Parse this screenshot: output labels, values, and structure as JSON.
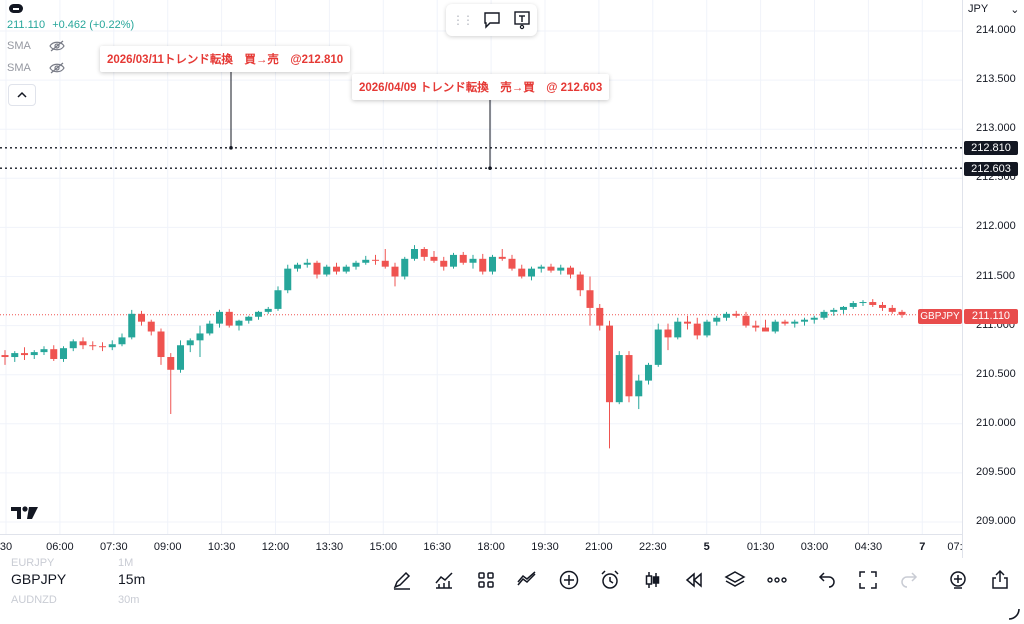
{
  "header": {
    "last_price": "211.110",
    "change": "+0.462",
    "change_pct": "(+0.22%)",
    "currency": "JPY",
    "indicators": [
      {
        "label": "SMA",
        "icon": "eye-off-icon"
      },
      {
        "label": "SMA",
        "icon": "eye-off-icon"
      }
    ]
  },
  "annotations": [
    {
      "text": "2026/03/11トレンド転換　買→売　@212.810",
      "price": 212.81
    },
    {
      "text": "2026/04/09 トレンド転換　売→買　@ 212.603",
      "price": 212.603
    }
  ],
  "price_tags": {
    "line1": "212.810",
    "line2": "212.603",
    "current": "211.110",
    "symbol": "GBPJPY"
  },
  "bottom": {
    "symbol": "GBPJPY",
    "timeframe": "15m",
    "ghost_symbols": [
      "EURJPY",
      "AUDNZD"
    ],
    "ghost_timeframes": [
      "1M",
      "30m"
    ],
    "tools": [
      "pen-icon",
      "indicators-icon",
      "grid-icon",
      "compare-icon",
      "plus-circle-icon",
      "alarm-icon",
      "candles-icon",
      "replay-icon",
      "layers-icon",
      "more-icon",
      "undo-icon",
      "fullscreen-icon",
      "redo-icon",
      "add-alert-icon",
      "share-icon"
    ]
  },
  "colors": {
    "up": "#26a69a",
    "down": "#ef5350",
    "annotation": "#e53935"
  },
  "chart_data": {
    "type": "candlestick",
    "symbol": "GBPJPY",
    "interval": "15m",
    "ylim": [
      209.0,
      214.0
    ],
    "y_ticks": [
      "214.000",
      "213.500",
      "213.000",
      "212.500",
      "212.000",
      "211.500",
      "211.000",
      "210.500",
      "210.000",
      "209.500",
      "209.000"
    ],
    "x_ticks": [
      "30",
      "06:00",
      "07:30",
      "09:00",
      "10:30",
      "12:00",
      "13:30",
      "15:00",
      "16:30",
      "18:00",
      "19:30",
      "21:00",
      "22:30",
      "5",
      "01:30",
      "03:00",
      "04:30",
      "7",
      "07:"
    ],
    "horizontal_lines": [
      212.81,
      212.603
    ],
    "current_price": 211.11,
    "ohlc": [
      [
        210.7,
        210.75,
        210.6,
        210.68
      ],
      [
        210.68,
        210.74,
        210.63,
        210.72
      ],
      [
        210.72,
        210.78,
        210.65,
        210.7
      ],
      [
        210.7,
        210.75,
        210.66,
        210.73
      ],
      [
        210.73,
        210.79,
        210.7,
        210.76
      ],
      [
        210.76,
        210.8,
        210.64,
        210.66
      ],
      [
        210.66,
        210.79,
        210.63,
        210.77
      ],
      [
        210.77,
        210.86,
        210.74,
        210.84
      ],
      [
        210.84,
        210.88,
        210.76,
        210.8
      ],
      [
        210.8,
        210.84,
        210.75,
        210.79
      ],
      [
        210.79,
        210.83,
        210.74,
        210.78
      ],
      [
        210.78,
        210.85,
        210.75,
        210.81
      ],
      [
        210.81,
        210.92,
        210.79,
        210.88
      ],
      [
        210.88,
        211.16,
        210.86,
        211.12
      ],
      [
        211.12,
        211.15,
        211.0,
        211.04
      ],
      [
        211.04,
        211.06,
        210.9,
        210.94
      ],
      [
        210.94,
        210.97,
        210.6,
        210.68
      ],
      [
        210.68,
        210.72,
        210.1,
        210.55
      ],
      [
        210.55,
        210.85,
        210.52,
        210.8
      ],
      [
        210.8,
        210.87,
        210.73,
        210.85
      ],
      [
        210.85,
        211.0,
        210.68,
        210.92
      ],
      [
        210.92,
        211.05,
        210.9,
        211.02
      ],
      [
        211.02,
        211.16,
        210.98,
        211.14
      ],
      [
        211.14,
        211.17,
        210.98,
        211.0
      ],
      [
        211.0,
        211.06,
        210.95,
        211.05
      ],
      [
        211.05,
        211.1,
        211.02,
        211.09
      ],
      [
        211.09,
        211.15,
        211.06,
        211.14
      ],
      [
        211.14,
        211.19,
        211.12,
        211.17
      ],
      [
        211.17,
        211.4,
        211.15,
        211.36
      ],
      [
        211.36,
        211.62,
        211.33,
        211.58
      ],
      [
        211.58,
        211.64,
        211.55,
        211.62
      ],
      [
        211.62,
        211.68,
        211.59,
        211.64
      ],
      [
        211.64,
        211.66,
        211.48,
        211.52
      ],
      [
        211.52,
        211.62,
        211.5,
        211.6
      ],
      [
        211.6,
        211.64,
        211.52,
        211.55
      ],
      [
        211.55,
        211.62,
        211.53,
        211.6
      ],
      [
        211.6,
        211.66,
        211.57,
        211.64
      ],
      [
        211.64,
        211.71,
        211.62,
        211.67
      ],
      [
        211.67,
        211.72,
        211.62,
        211.66
      ],
      [
        211.66,
        211.78,
        211.58,
        211.6
      ],
      [
        211.6,
        211.64,
        211.4,
        211.5
      ],
      [
        211.5,
        211.7,
        211.47,
        211.68
      ],
      [
        211.68,
        211.82,
        211.66,
        211.78
      ],
      [
        211.78,
        211.8,
        211.66,
        211.7
      ],
      [
        211.7,
        211.76,
        211.64,
        211.66
      ],
      [
        211.66,
        211.7,
        211.56,
        211.6
      ],
      [
        211.6,
        211.74,
        211.58,
        211.72
      ],
      [
        211.72,
        211.75,
        211.62,
        211.64
      ],
      [
        211.64,
        211.72,
        211.58,
        211.68
      ],
      [
        211.68,
        211.73,
        211.52,
        211.55
      ],
      [
        211.55,
        211.72,
        211.52,
        211.7
      ],
      [
        211.7,
        211.78,
        211.66,
        211.68
      ],
      [
        211.68,
        211.72,
        211.56,
        211.58
      ],
      [
        211.58,
        211.62,
        211.48,
        211.5
      ],
      [
        211.5,
        211.6,
        211.46,
        211.58
      ],
      [
        211.58,
        211.62,
        211.54,
        211.6
      ],
      [
        211.6,
        211.63,
        211.54,
        211.56
      ],
      [
        211.56,
        211.62,
        211.52,
        211.59
      ],
      [
        211.59,
        211.61,
        211.48,
        211.52
      ],
      [
        211.52,
        211.55,
        211.3,
        211.36
      ],
      [
        211.36,
        211.5,
        211.0,
        211.18
      ],
      [
        211.18,
        211.22,
        210.95,
        211.0
      ],
      [
        211.0,
        211.05,
        209.75,
        210.22
      ],
      [
        210.22,
        210.74,
        210.2,
        210.7
      ],
      [
        210.7,
        210.74,
        210.22,
        210.28
      ],
      [
        210.28,
        210.5,
        210.15,
        210.44
      ],
      [
        210.44,
        210.62,
        210.4,
        210.6
      ],
      [
        210.6,
        211.02,
        210.58,
        210.96
      ],
      [
        210.96,
        211.02,
        210.75,
        210.88
      ],
      [
        210.88,
        211.08,
        210.86,
        211.04
      ],
      [
        211.04,
        211.1,
        210.96,
        211.02
      ],
      [
        211.02,
        211.08,
        210.86,
        210.9
      ],
      [
        210.9,
        211.06,
        210.88,
        211.04
      ],
      [
        211.04,
        211.1,
        211.0,
        211.08
      ],
      [
        211.08,
        211.14,
        211.05,
        211.12
      ],
      [
        211.12,
        211.15,
        211.08,
        211.1
      ],
      [
        211.1,
        211.14,
        210.98,
        211.0
      ],
      [
        211.0,
        211.05,
        210.94,
        210.98
      ],
      [
        210.98,
        211.06,
        210.94,
        210.94
      ],
      [
        210.94,
        211.06,
        210.92,
        211.04
      ],
      [
        211.04,
        211.06,
        211.0,
        211.02
      ],
      [
        211.02,
        211.06,
        210.98,
        211.04
      ],
      [
        211.04,
        211.08,
        211.0,
        211.06
      ],
      [
        211.06,
        211.1,
        211.02,
        211.08
      ],
      [
        211.08,
        211.16,
        211.06,
        211.14
      ],
      [
        211.14,
        211.18,
        211.1,
        211.16
      ],
      [
        211.16,
        211.2,
        211.12,
        211.19
      ],
      [
        211.19,
        211.25,
        211.17,
        211.23
      ],
      [
        211.23,
        211.26,
        211.2,
        211.24
      ],
      [
        211.24,
        211.27,
        211.19,
        211.21
      ],
      [
        211.21,
        211.24,
        211.15,
        211.18
      ],
      [
        211.18,
        211.21,
        211.12,
        211.14
      ],
      [
        211.14,
        211.16,
        211.08,
        211.11
      ]
    ]
  }
}
